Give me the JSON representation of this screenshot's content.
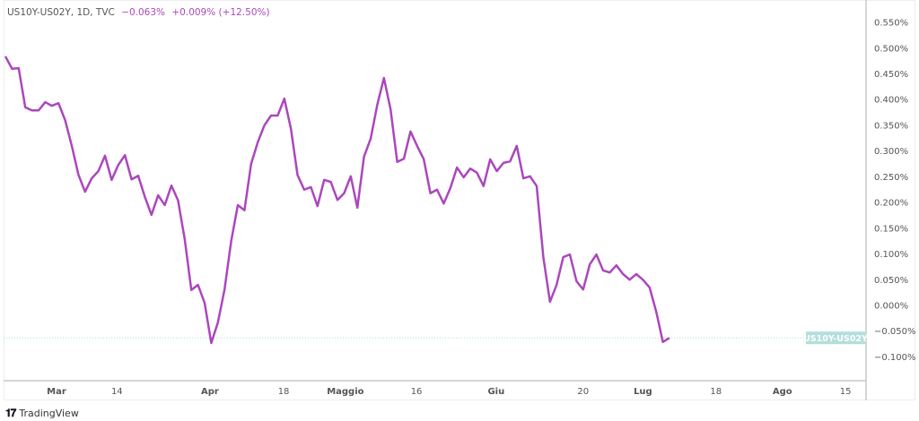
{
  "legend": {
    "symbol": "US10Y-US02Y, 1D, TVC",
    "last": "−0.063%",
    "change": "+0.009% (+12.50%)"
  },
  "price_tag": "US10Y-US02Y",
  "footer": {
    "brand": "TradingView",
    "logo_text": "TV"
  },
  "colors": {
    "line": "#ab47bc",
    "tag": "#b2dfdb",
    "axis": "#c7c9cc"
  },
  "chart_data": {
    "type": "line",
    "title": "",
    "xlabel": "",
    "ylabel": "",
    "ylim": [
      -0.125,
      0.593
    ],
    "y_unit": "%",
    "grid": false,
    "y_ticks": [
      0.55,
      0.5,
      0.45,
      0.4,
      0.35,
      0.3,
      0.25,
      0.2,
      0.15,
      0.1,
      0.05,
      0.0,
      -0.05,
      -0.1
    ],
    "y_tick_labels": [
      "0.550%",
      "0.500%",
      "0.450%",
      "0.400%",
      "0.350%",
      "0.300%",
      "0.250%",
      "0.200%",
      "0.150%",
      "0.100%",
      "0.050%",
      "0.000%",
      "−0.050%",
      "−0.100%"
    ],
    "x_tick_labels": [
      {
        "label": "Mar",
        "month": true
      },
      {
        "label": "14",
        "month": false
      },
      {
        "label": "Apr",
        "month": true
      },
      {
        "label": "18",
        "month": false
      },
      {
        "label": "Maggio",
        "month": true
      },
      {
        "label": "16",
        "month": false
      },
      {
        "label": "Giu",
        "month": true
      },
      {
        "label": "20",
        "month": false
      },
      {
        "label": "Lug",
        "month": true
      },
      {
        "label": "18",
        "month": false
      },
      {
        "label": "Ago",
        "month": true
      },
      {
        "label": "15",
        "month": false
      }
    ],
    "series": [
      {
        "values": [
          0.484,
          0.46,
          0.461,
          0.385,
          0.379,
          0.379,
          0.395,
          0.388,
          0.393,
          0.36,
          0.31,
          0.254,
          0.221,
          0.247,
          0.261,
          0.291,
          0.244,
          0.273,
          0.292,
          0.245,
          0.252,
          0.211,
          0.176,
          0.214,
          0.195,
          0.233,
          0.204,
          0.129,
          0.03,
          0.04,
          0.005,
          -0.073,
          -0.033,
          0.031,
          0.125,
          0.195,
          0.185,
          0.275,
          0.317,
          0.35,
          0.369,
          0.369,
          0.402,
          0.343,
          0.253,
          0.225,
          0.23,
          0.193,
          0.244,
          0.24,
          0.205,
          0.218,
          0.251,
          0.19,
          0.289,
          0.324,
          0.39,
          0.442,
          0.381,
          0.279,
          0.285,
          0.338,
          0.31,
          0.284,
          0.218,
          0.225,
          0.198,
          0.228,
          0.268,
          0.249,
          0.266,
          0.258,
          0.232,
          0.284,
          0.261,
          0.277,
          0.28,
          0.31,
          0.247,
          0.251,
          0.232,
          0.094,
          0.007,
          0.04,
          0.094,
          0.099,
          0.047,
          0.031,
          0.08,
          0.099,
          0.068,
          0.064,
          0.078,
          0.061,
          0.05,
          0.061,
          0.05,
          0.035,
          -0.012,
          -0.071,
          -0.063
        ]
      }
    ],
    "last_value": -0.063
  }
}
